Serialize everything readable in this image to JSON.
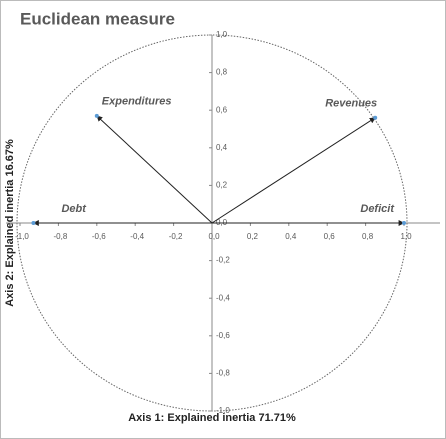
{
  "chart_data": {
    "type": "vector",
    "title": "Euclidean measure",
    "x_label": "Axis 1: Explained inertia 71.71%",
    "y_label": "Axis 2: Explained inertia 16.67%",
    "points": [
      {
        "name": "Expenditures",
        "x": -0.6,
        "y": 0.57
      },
      {
        "name": "Revenues",
        "x": 0.85,
        "y": 0.56
      },
      {
        "name": "Debt",
        "x": -0.93,
        "y": 0
      },
      {
        "name": "Deficit",
        "x": 1.0,
        "y": 0
      }
    ],
    "color": "#5b9bd5",
    "xlim": [
      -1.0,
      1.0
    ],
    "ylim": [
      -1.0,
      1.0
    ],
    "xticks": [
      {
        "value": -1.0,
        "label": "-1,0"
      },
      {
        "value": -0.8,
        "label": "-0,8"
      },
      {
        "value": -0.6,
        "label": "-0,6"
      },
      {
        "value": -0.4,
        "label": "-0,4"
      },
      {
        "value": -0.2,
        "label": "-0,2"
      },
      {
        "value": 0,
        "label": "0,0"
      },
      {
        "value": 0.2,
        "label": "0,2"
      },
      {
        "value": 0.4,
        "label": "0,4"
      },
      {
        "value": 0.6,
        "label": "0,6"
      },
      {
        "value": 0.8,
        "label": "0,8"
      },
      {
        "value": 1.0,
        "label": "1,0"
      }
    ],
    "yticks": [
      {
        "value": -1.0,
        "label": "-1,0"
      },
      {
        "value": -0.8,
        "label": "-0,8"
      },
      {
        "value": -0.6,
        "label": "-0,6"
      },
      {
        "value": -0.4,
        "label": "-0,4"
      },
      {
        "value": -0.2,
        "label": "-0,2"
      },
      {
        "value": 0,
        "label": "0,0"
      },
      {
        "value": 0.2,
        "label": "0,2"
      },
      {
        "value": 0.4,
        "label": "0,4"
      },
      {
        "value": 0.6,
        "label": "0,6"
      },
      {
        "value": 0.8,
        "label": "0,8"
      },
      {
        "value": 1.0,
        "label": "1,0"
      }
    ]
  }
}
